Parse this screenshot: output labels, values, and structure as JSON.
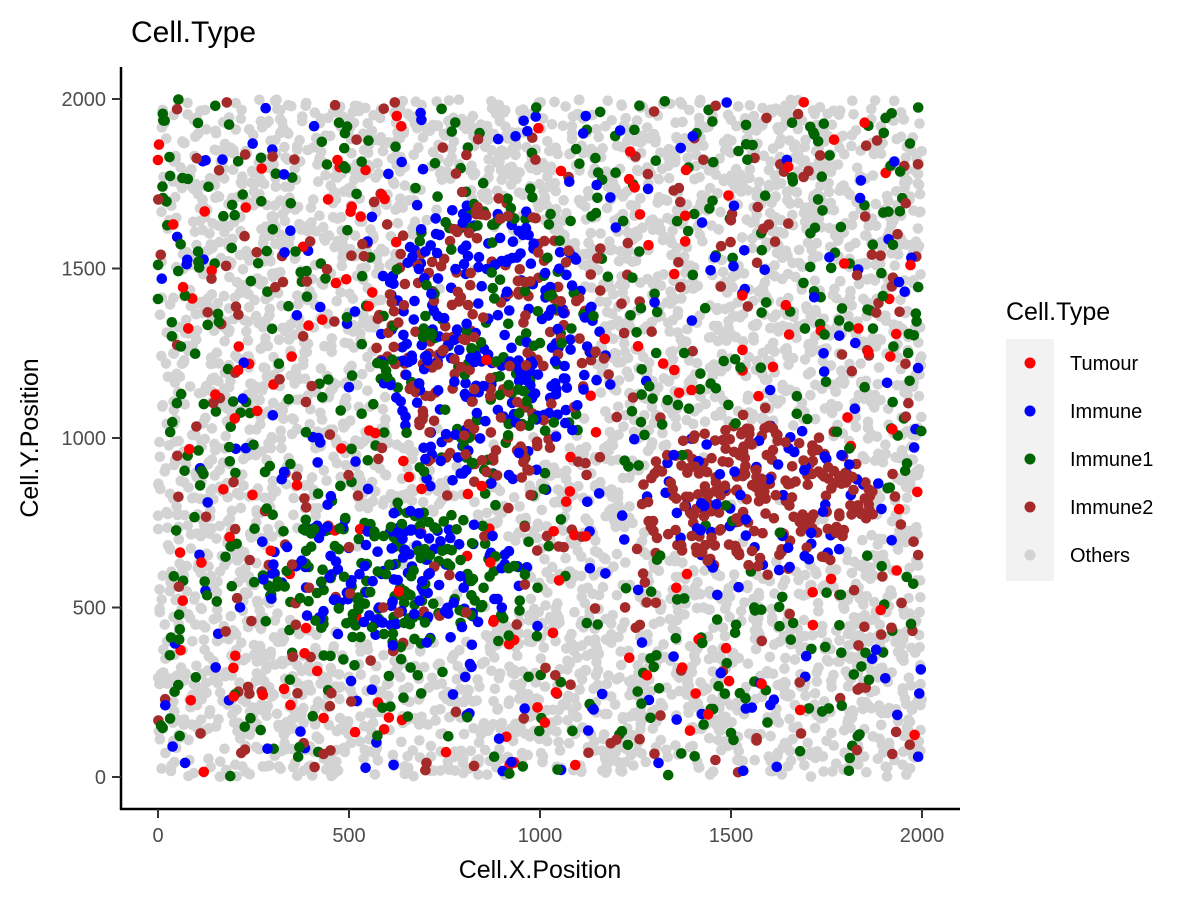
{
  "chart_data": {
    "type": "scatter",
    "title": "Cell.Type",
    "xlabel": "Cell.X.Position",
    "ylabel": "Cell.Y.Position",
    "xlim": [
      -100,
      2100
    ],
    "ylim": [
      -100,
      2100
    ],
    "x_ticks": [
      0,
      500,
      1000,
      1500,
      2000
    ],
    "y_ticks": [
      0,
      500,
      1000,
      1500,
      2000
    ],
    "grid": false,
    "legend": {
      "title": "Cell.Type",
      "position": "right",
      "entries": [
        {
          "name": "Tumour",
          "color": "#ff0000"
        },
        {
          "name": "Immune",
          "color": "#0000ff"
        },
        {
          "name": "Immune1",
          "color": "#006400"
        },
        {
          "name": "Immune2",
          "color": "#a52a2a"
        },
        {
          "name": "Others",
          "color": "#d3d3d3"
        }
      ]
    },
    "point_count_estimate": 6000,
    "clusters": [
      {
        "name": "upper-left immune cluster",
        "center": [
          860,
          1280
        ],
        "radii": [
          290,
          420
        ],
        "composition": {
          "Immune": 0.4,
          "Immune2": 0.35,
          "Immune1": 0.2,
          "Others": 0.05
        }
      },
      {
        "name": "lower-left immune cluster",
        "center": [
          620,
          590
        ],
        "radii": [
          350,
          200
        ],
        "composition": {
          "Immune1": 0.5,
          "Immune": 0.35,
          "Immune2": 0.07,
          "Tumour": 0.03,
          "Others": 0.05
        }
      },
      {
        "name": "right immune2 cluster",
        "center": [
          1560,
          820
        ],
        "radii": [
          320,
          220
        ],
        "composition": {
          "Immune2": 0.75,
          "Immune": 0.2,
          "Immune1": 0.02,
          "Others": 0.03
        }
      }
    ],
    "background_composition": {
      "Others": 0.8,
      "Immune1": 0.09,
      "Immune2": 0.05,
      "Tumour": 0.03,
      "Immune": 0.03
    },
    "series": [
      {
        "name": "Tumour",
        "x": [
          0,
          40,
          65,
          120,
          210,
          230,
          260,
          330,
          350,
          470,
          625,
          690,
          860,
          1050,
          1120,
          1280,
          1380,
          1530,
          1580,
          1650,
          1770,
          1850,
          1940,
          1970
        ],
        "y": [
          1820,
          1630,
          520,
          15,
          1200,
          1680,
          1080,
          260,
          1240,
          1820,
          1950,
          850,
          1230,
          580,
          710,
          300,
          1580,
          1260,
          275,
          1800,
          1880,
          1930,
          790,
          1510
        ]
      },
      {
        "name": "Immune",
        "x": [
          10,
          130,
          230,
          330,
          420,
          550,
          900,
          1120,
          1300,
          1430,
          1520,
          1710,
          1840,
          1940,
          1990,
          1620,
          1400,
          700,
          500,
          640
        ],
        "y": [
          1470,
          810,
          970,
          900,
          1000,
          850,
          500,
          1950,
          1400,
          800,
          560,
          720,
          1760,
          1460,
          60,
          30,
          1890,
          1550,
          1150,
          1080
        ]
      },
      {
        "name": "Immune1",
        "x": [
          0,
          60,
          120,
          150,
          190,
          280,
          360,
          430,
          520,
          600,
          680,
          760,
          880,
          920,
          1000,
          1080,
          1140,
          1260,
          1320,
          1420,
          1500,
          1580,
          1660,
          1720,
          1790,
          1850,
          1900,
          1960,
          1990,
          980,
          700,
          250
        ],
        "y": [
          1410,
          1270,
          1100,
          1980,
          680,
          900,
          1550,
          1120,
          1720,
          1180,
          300,
          120,
          60,
          10,
          1280,
          1640,
          1360,
          1550,
          1040,
          1190,
          130,
          1370,
          1930,
          1620,
          210,
          1150,
          1900,
          590,
          1975,
          1710,
          1360,
          980
        ]
      },
      {
        "name": "Immune2",
        "x": [
          50,
          140,
          180,
          240,
          300,
          380,
          450,
          520,
          620,
          700,
          780,
          860,
          960,
          1040,
          1150,
          1200,
          1270,
          1350,
          1460,
          1580,
          1690,
          1760,
          1830,
          1880,
          1920,
          1990,
          600,
          1100
        ],
        "y": [
          1970,
          1470,
          1990,
          640,
          1830,
          1300,
          1010,
          1880,
          1990,
          20,
          1780,
          900,
          1460,
          300,
          1530,
          110,
          600,
          1730,
          1980,
          880,
          1770,
          640,
          1480,
          1370,
          440,
          655,
          1630,
          930
        ]
      }
    ]
  }
}
